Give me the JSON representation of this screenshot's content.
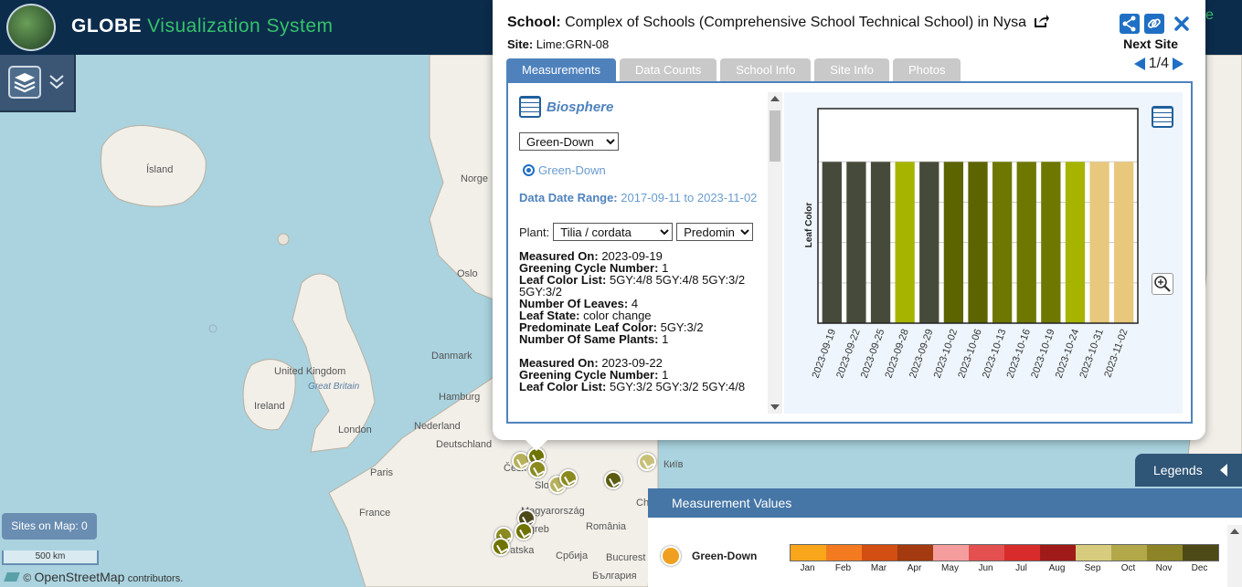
{
  "header": {
    "brand_main": "GLOBE",
    "brand_sub": "Visualization System",
    "right_partial": "e"
  },
  "map": {
    "labels": {
      "island": "Ísland",
      "norge": "Norge",
      "oslo": "Oslo",
      "danmark": "Danmark",
      "uk": "United Kingdom",
      "great_britain": "Great Britain",
      "ireland": "Ireland",
      "hamburg": "Hamburg",
      "london": "London",
      "nederland": "Nederland",
      "deutschland": "Deutschland",
      "paris": "Paris",
      "france": "France",
      "cesko": "Česk",
      "slovensko": "Slo",
      "magyarorszag": "Magyarország",
      "zagreb": "Zagreb",
      "hrvatska": "Hrvatska",
      "romania": "România",
      "srbija": "Србија",
      "bucuresti": "Bucurest",
      "bulgaria": "България",
      "kyiv": "Київ",
      "ch": "Ch"
    },
    "sites_on_map": "Sites on Map: 0",
    "scale": "500 km",
    "attribution_prefix": "©",
    "attribution_osm": "OpenStreetMap",
    "attribution_suffix": "contributors."
  },
  "popup": {
    "school_label": "School:",
    "school_name": "Complex of Schools (Comprehensive School Technical School) in Nysa",
    "site_label": "Site:",
    "site_value": "Lime:GRN-08",
    "next_site_label": "Next Site",
    "pager": "1/4",
    "tabs": [
      "Measurements",
      "Data Counts",
      "School Info",
      "Site Info",
      "Photos"
    ],
    "heading": "Biosphere",
    "protocol_select": "Green-Down",
    "radio_label": "Green-Down",
    "range_label": "Data Date Range:",
    "range_value": "2017-09-11 to 2023-11-02",
    "plant_label": "Plant:",
    "plant_select": "Tilia / cordata",
    "plant_select2": "Predomina",
    "measurements": [
      {
        "measured_on_label": "Measured On:",
        "measured_on": "2023-09-19",
        "cycle_label": "Greening Cycle Number:",
        "cycle": "1",
        "color_list_label": "Leaf Color List:",
        "color_list": "5GY:4/8 5GY:4/8 5GY:3/2 5GY:3/2",
        "leaves_label": "Number Of Leaves:",
        "leaves": "4",
        "state_label": "Leaf State:",
        "state": "color change",
        "predom_label": "Predominate Leaf Color:",
        "predom": "5GY:3/2",
        "same_label": "Number Of Same Plants:",
        "same": "1"
      },
      {
        "measured_on_label": "Measured On:",
        "measured_on": "2023-09-22",
        "cycle_label": "Greening Cycle Number:",
        "cycle": "1",
        "color_list_label": "Leaf Color List:",
        "color_list": "5GY:3/2 5GY:3/2 5GY:4/8"
      }
    ]
  },
  "chart_data": {
    "type": "bar",
    "ylabel": "Leaf Color",
    "categories": [
      "2023-09-19",
      "2023-09-22",
      "2023-09-25",
      "2023-09-28",
      "2023-09-29",
      "2023-10-02",
      "2023-10-06",
      "2023-10-13",
      "2023-10-16",
      "2023-10-19",
      "2023-10-24",
      "2023-10-31",
      "2023-11-02"
    ],
    "values": [
      1,
      1,
      1,
      1,
      1,
      1,
      1,
      1,
      1,
      1,
      1,
      1,
      1
    ],
    "ylim": [
      0,
      1.33
    ],
    "colors": [
      "#464a3a",
      "#464a3a",
      "#464a3a",
      "#a6b400",
      "#464a3a",
      "#5c6400",
      "#5c6400",
      "#6e7800",
      "#6e7800",
      "#6e7800",
      "#a6b400",
      "#e8c87c",
      "#e8c87c"
    ],
    "grid": true
  },
  "legend": {
    "button_label": "Legends",
    "title": "Measurement Values",
    "item_label": "Green-Down",
    "colors": [
      "#f9a61a",
      "#f47a20",
      "#d24e12",
      "#a33a10",
      "#f59d9d",
      "#e45050",
      "#d82c2c",
      "#a11a1a",
      "#d7cc7e",
      "#b2a84a",
      "#8c8426",
      "#4e4a18"
    ],
    "months": [
      "Jan",
      "Feb",
      "Mar",
      "Apr",
      "May",
      "Jun",
      "Jul",
      "Aug",
      "Sep",
      "Oct",
      "Nov",
      "Dec"
    ]
  }
}
